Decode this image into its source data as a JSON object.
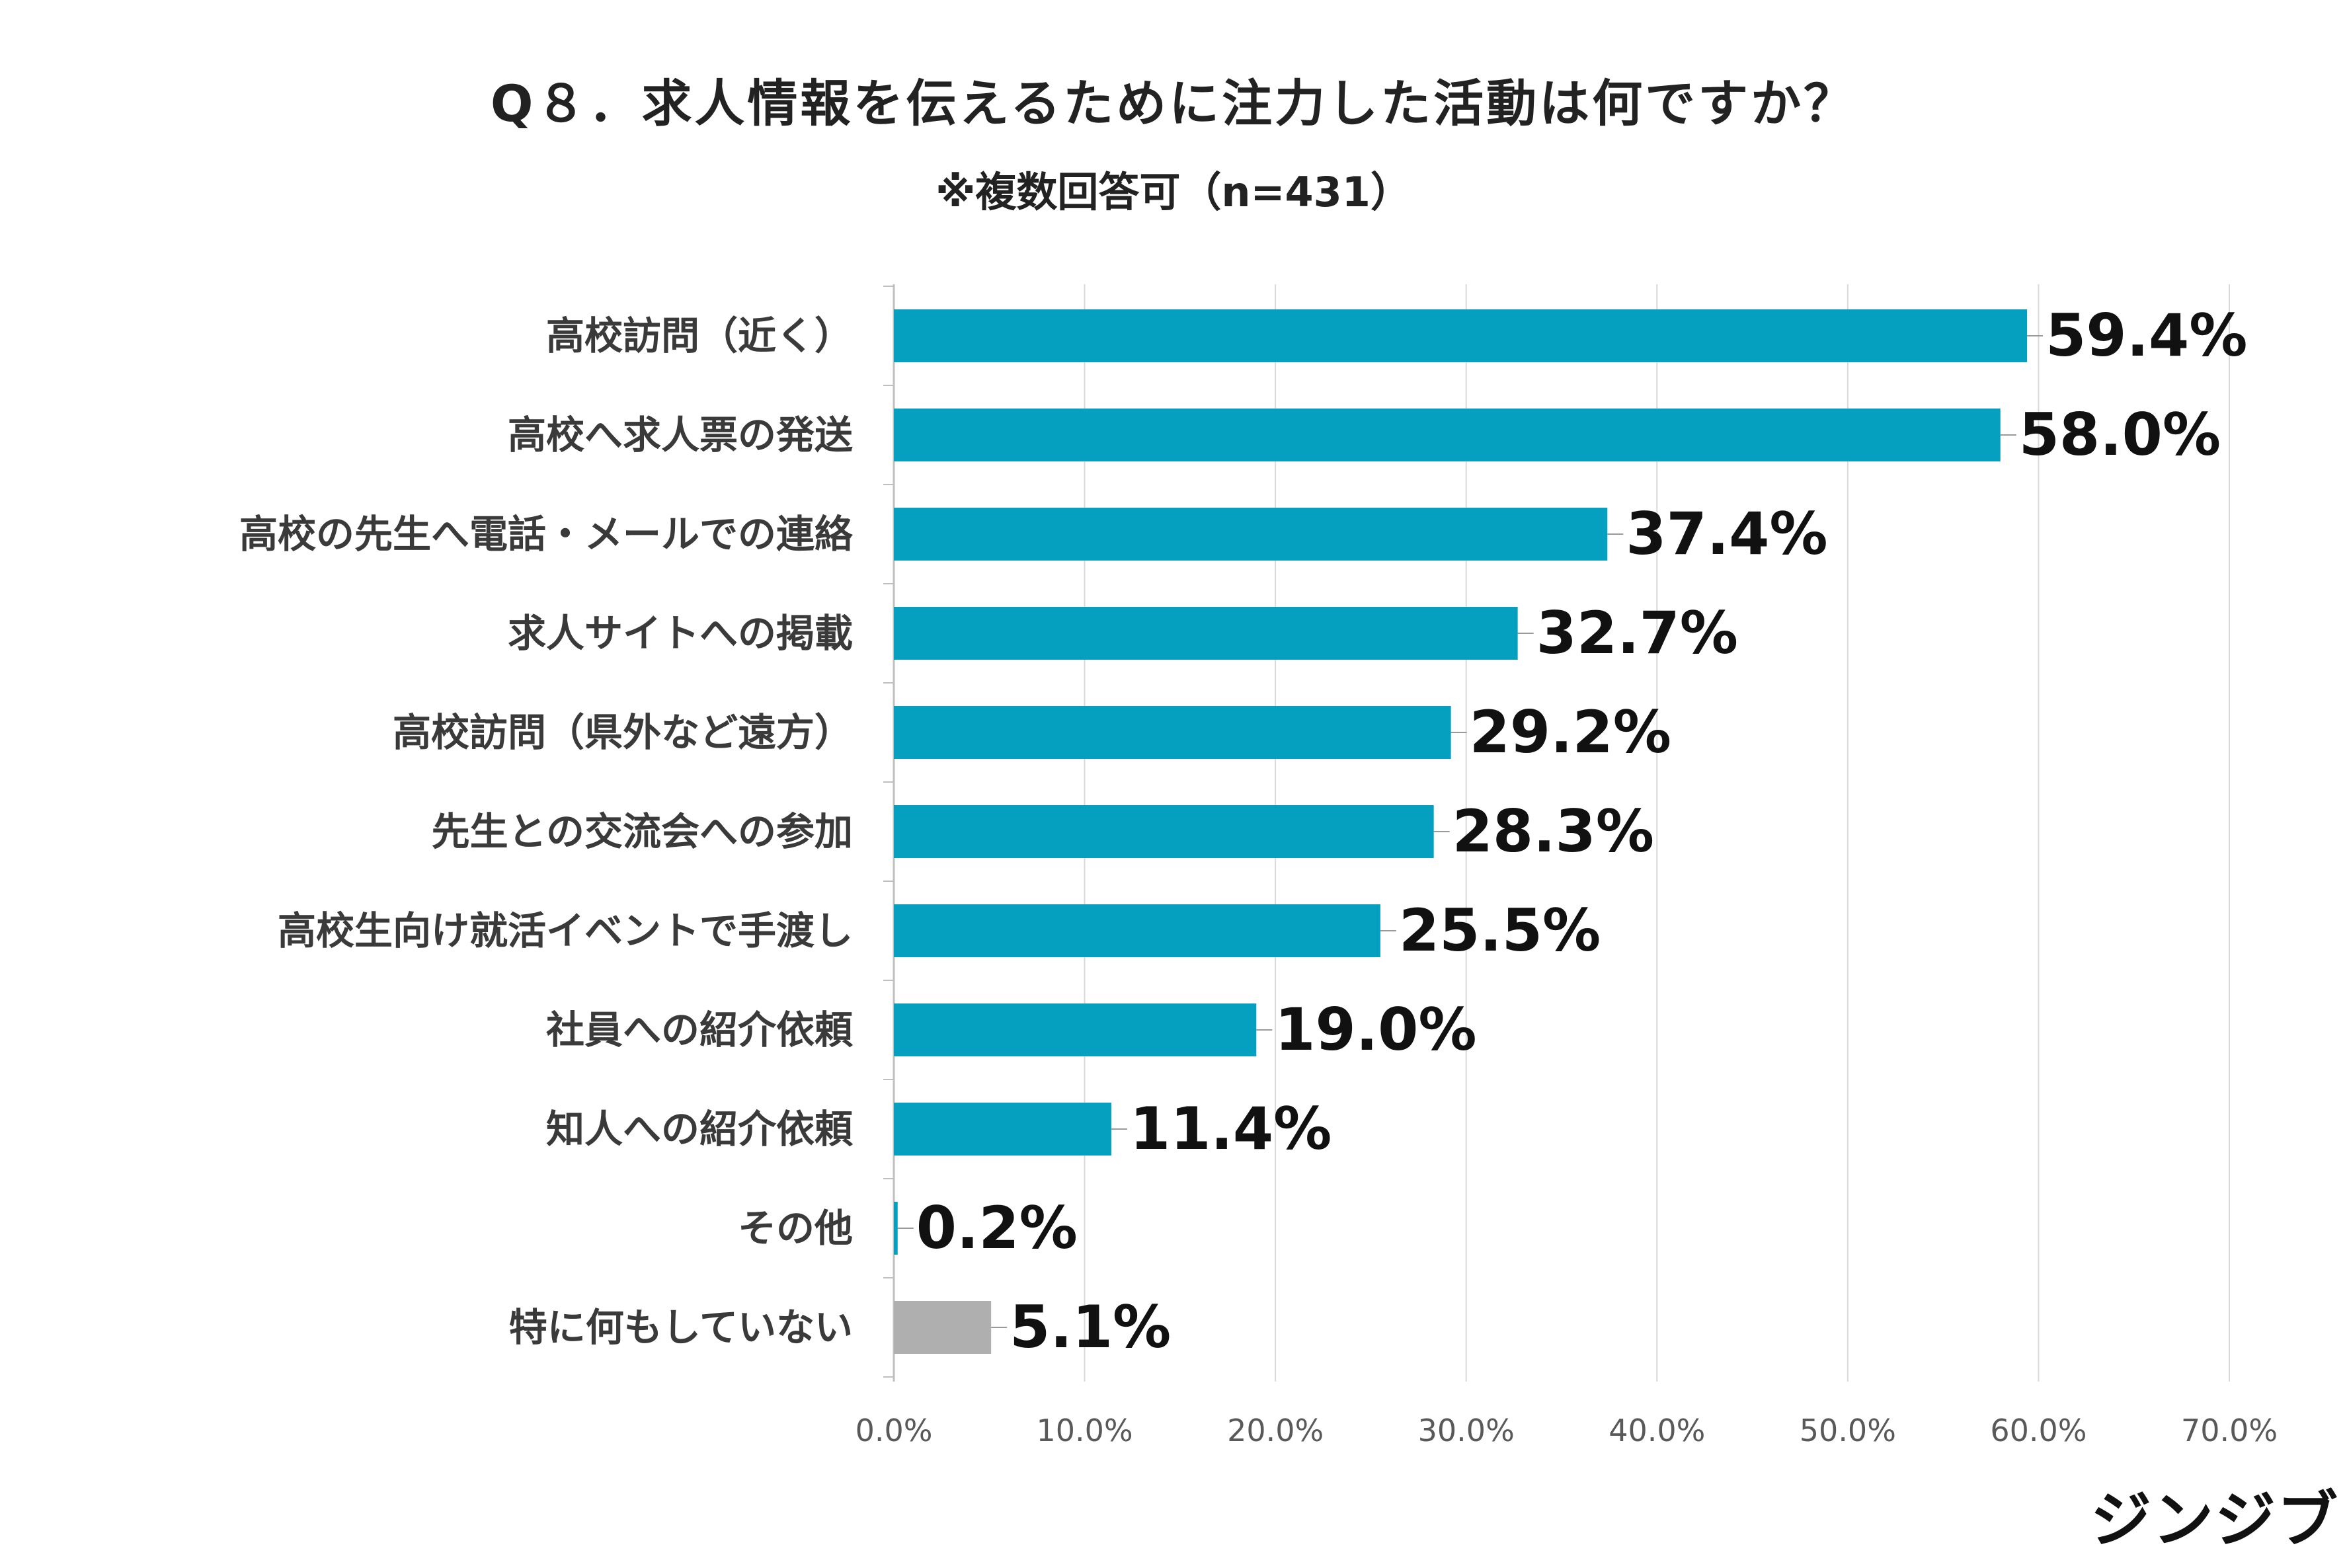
{
  "title": "Q８．求人情報を伝えるために注力した活動は何ですか？",
  "subtitle": "※複数回答可（n=431）",
  "logo": "ジンジブ",
  "colors": {
    "primary": "#05a0bf",
    "other": "#afafaf",
    "grid": "#d9d9d9",
    "axis": "#bfbfbf"
  },
  "chart_data": {
    "type": "bar",
    "orientation": "horizontal",
    "categories": [
      "高校訪問（近く）",
      "高校へ求人票の発送",
      "高校の先生へ電話・メールでの連絡",
      "求人サイトへの掲載",
      "高校訪問（県外など遠方）",
      "先生との交流会への参加",
      "高校生向け就活イベントで手渡し",
      "社員への紹介依頼",
      "知人への紹介依頼",
      "その他",
      "特に何もしていない"
    ],
    "values": [
      59.4,
      58.0,
      37.4,
      32.7,
      29.2,
      28.3,
      25.5,
      19.0,
      11.4,
      0.2,
      5.1
    ],
    "data_labels": [
      "59.4%",
      "58.0%",
      "37.4%",
      "32.7%",
      "29.2%",
      "28.3%",
      "25.5%",
      "19.0%",
      "11.4%",
      "0.2%",
      "5.1%"
    ],
    "highlight_gray_index": 10,
    "xlim": [
      0,
      70
    ],
    "x_ticks": [
      0,
      10,
      20,
      30,
      40,
      50,
      60,
      70
    ],
    "x_tick_labels": [
      "0.0%",
      "10.0%",
      "20.0%",
      "30.0%",
      "40.0%",
      "50.0%",
      "60.0%",
      "70.0%"
    ],
    "grid": true,
    "xlabel": "",
    "ylabel": ""
  }
}
